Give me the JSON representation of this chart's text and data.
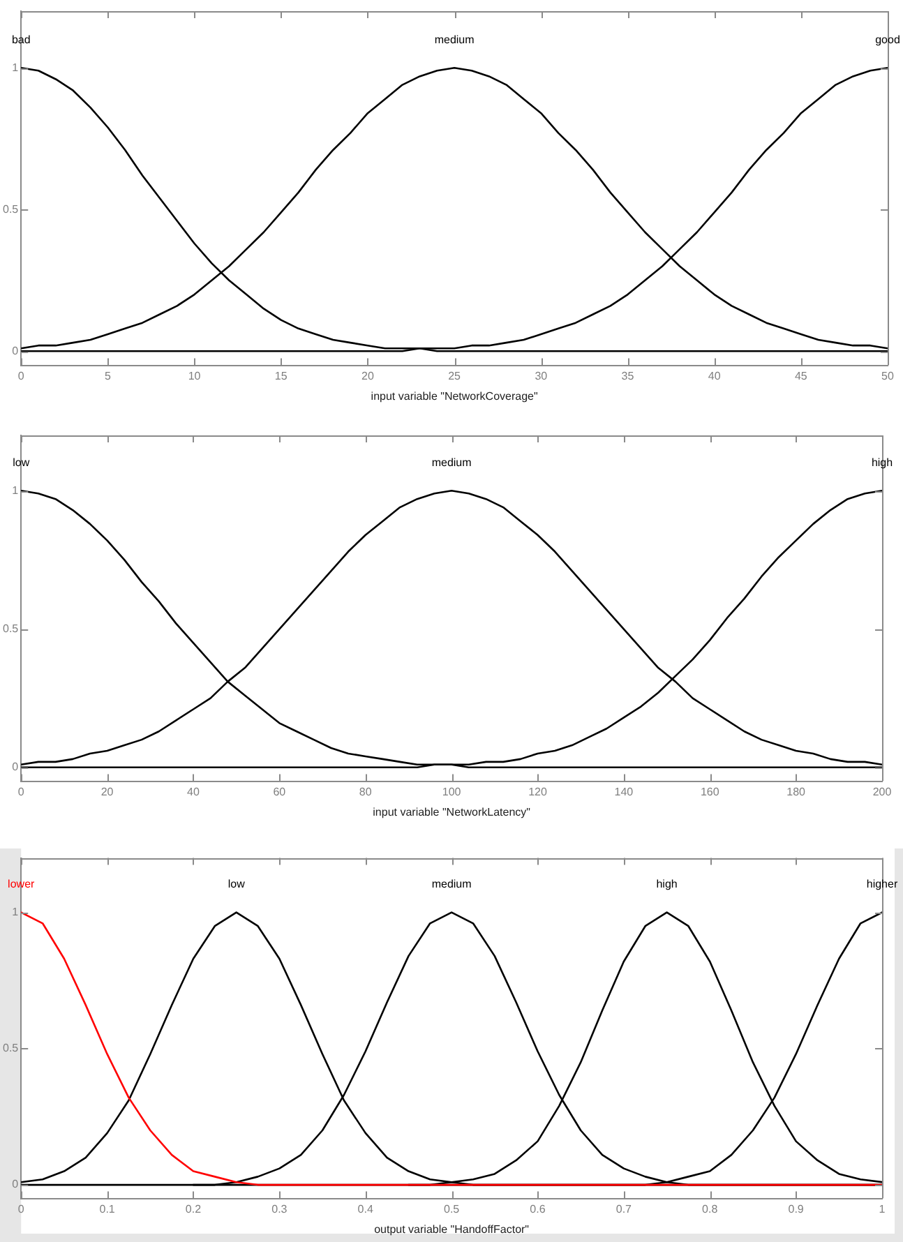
{
  "chart_data": [
    {
      "type": "line",
      "xlabel": "input variable \"NetworkCoverage\"",
      "xlim": [
        0,
        50
      ],
      "xticks": [
        0,
        5,
        10,
        15,
        20,
        25,
        30,
        35,
        40,
        45,
        50
      ],
      "ylim": [
        -0.05,
        1.2
      ],
      "yticks": [
        0,
        0.5,
        1
      ],
      "x": [
        0,
        1,
        2,
        3,
        4,
        5,
        6,
        7,
        8,
        9,
        10,
        11,
        12,
        13,
        14,
        15,
        16,
        17,
        18,
        19,
        20,
        21,
        22,
        23,
        24,
        25,
        26,
        27,
        28,
        29,
        30,
        31,
        32,
        33,
        34,
        35,
        36,
        37,
        38,
        39,
        40,
        41,
        42,
        43,
        44,
        45,
        46,
        47,
        48,
        49,
        50
      ],
      "series": [
        {
          "name": "bad",
          "color": "#000000",
          "values": [
            1,
            0.99,
            0.96,
            0.92,
            0.86,
            0.79,
            0.71,
            0.62,
            0.54,
            0.46,
            0.38,
            0.31,
            0.25,
            0.2,
            0.15,
            0.11,
            0.08,
            0.06,
            0.04,
            0.03,
            0.02,
            0.01,
            0.01,
            0.01,
            0,
            0,
            0,
            0,
            0,
            0,
            0,
            0,
            0,
            0,
            0,
            0,
            0,
            0,
            0,
            0,
            0,
            0,
            0,
            0,
            0,
            0,
            0,
            0,
            0,
            0,
            0
          ]
        },
        {
          "name": "medium",
          "color": "#000000",
          "values": [
            0.01,
            0.02,
            0.02,
            0.03,
            0.04,
            0.06,
            0.08,
            0.1,
            0.13,
            0.16,
            0.2,
            0.25,
            0.3,
            0.36,
            0.42,
            0.49,
            0.56,
            0.64,
            0.71,
            0.77,
            0.84,
            0.89,
            0.94,
            0.97,
            0.99,
            1,
            0.99,
            0.97,
            0.94,
            0.89,
            0.84,
            0.77,
            0.71,
            0.64,
            0.56,
            0.49,
            0.42,
            0.36,
            0.3,
            0.25,
            0.2,
            0.16,
            0.13,
            0.1,
            0.08,
            0.06,
            0.04,
            0.03,
            0.02,
            0.02,
            0.01
          ]
        },
        {
          "name": "good",
          "color": "#000000",
          "values": [
            0,
            0,
            0,
            0,
            0,
            0,
            0,
            0,
            0,
            0,
            0,
            0,
            0,
            0,
            0,
            0,
            0,
            0,
            0,
            0,
            0,
            0,
            0,
            0.01,
            0.01,
            0.01,
            0.02,
            0.02,
            0.03,
            0.04,
            0.06,
            0.08,
            0.1,
            0.13,
            0.16,
            0.2,
            0.25,
            0.3,
            0.36,
            0.42,
            0.49,
            0.56,
            0.64,
            0.71,
            0.77,
            0.84,
            0.89,
            0.94,
            0.97,
            0.99,
            1
          ]
        }
      ]
    },
    {
      "type": "line",
      "xlabel": "input variable \"NetworkLatency\"",
      "xlim": [
        0,
        200
      ],
      "xticks": [
        0,
        20,
        40,
        60,
        80,
        100,
        120,
        140,
        160,
        180,
        200
      ],
      "ylim": [
        -0.05,
        1.2
      ],
      "yticks": [
        0,
        0.5,
        1
      ],
      "x": [
        0,
        4,
        8,
        12,
        16,
        20,
        24,
        28,
        32,
        36,
        40,
        44,
        48,
        52,
        56,
        60,
        64,
        68,
        72,
        76,
        80,
        84,
        88,
        92,
        96,
        100,
        104,
        108,
        112,
        116,
        120,
        124,
        128,
        132,
        136,
        140,
        144,
        148,
        152,
        156,
        160,
        164,
        168,
        172,
        176,
        180,
        184,
        188,
        192,
        196,
        200
      ],
      "series": [
        {
          "name": "low",
          "color": "#000000",
          "values": [
            1,
            0.99,
            0.97,
            0.93,
            0.88,
            0.82,
            0.75,
            0.67,
            0.6,
            0.52,
            0.45,
            0.38,
            0.31,
            0.26,
            0.21,
            0.16,
            0.13,
            0.1,
            0.07,
            0.05,
            0.04,
            0.03,
            0.02,
            0.01,
            0.01,
            0.01,
            0,
            0,
            0,
            0,
            0,
            0,
            0,
            0,
            0,
            0,
            0,
            0,
            0,
            0,
            0,
            0,
            0,
            0,
            0,
            0,
            0,
            0,
            0,
            0,
            0
          ]
        },
        {
          "name": "medium",
          "color": "#000000",
          "values": [
            0.01,
            0.02,
            0.02,
            0.03,
            0.05,
            0.06,
            0.08,
            0.1,
            0.13,
            0.17,
            0.21,
            0.25,
            0.31,
            0.36,
            0.43,
            0.5,
            0.57,
            0.64,
            0.71,
            0.78,
            0.84,
            0.89,
            0.94,
            0.97,
            0.99,
            1,
            0.99,
            0.97,
            0.94,
            0.89,
            0.84,
            0.78,
            0.71,
            0.64,
            0.57,
            0.5,
            0.43,
            0.36,
            0.31,
            0.25,
            0.21,
            0.17,
            0.13,
            0.1,
            0.08,
            0.06,
            0.05,
            0.03,
            0.02,
            0.02,
            0.01
          ]
        },
        {
          "name": "high",
          "color": "#000000",
          "values": [
            0,
            0,
            0,
            0,
            0,
            0,
            0,
            0,
            0,
            0,
            0,
            0,
            0,
            0,
            0,
            0,
            0,
            0,
            0,
            0,
            0,
            0,
            0,
            0,
            0.01,
            0.01,
            0.01,
            0.02,
            0.02,
            0.03,
            0.05,
            0.06,
            0.08,
            0.11,
            0.14,
            0.18,
            0.22,
            0.27,
            0.33,
            0.39,
            0.46,
            0.54,
            0.61,
            0.69,
            0.76,
            0.82,
            0.88,
            0.93,
            0.97,
            0.99,
            1
          ]
        }
      ]
    },
    {
      "type": "line",
      "xlabel": "output variable \"HandoffFactor\"",
      "xlim": [
        0,
        1
      ],
      "xticks": [
        0,
        0.1,
        0.2,
        0.3,
        0.4,
        0.5,
        0.6,
        0.7,
        0.8,
        0.9,
        1
      ],
      "ylim": [
        -0.05,
        1.2
      ],
      "yticks": [
        0,
        0.5,
        1
      ],
      "x": [
        0,
        0.025,
        0.05,
        0.075,
        0.1,
        0.125,
        0.15,
        0.175,
        0.2,
        0.225,
        0.25,
        0.275,
        0.3,
        0.325,
        0.35,
        0.375,
        0.4,
        0.425,
        0.45,
        0.475,
        0.5,
        0.525,
        0.55,
        0.575,
        0.6,
        0.625,
        0.65,
        0.675,
        0.7,
        0.725,
        0.75,
        0.775,
        0.8,
        0.825,
        0.85,
        0.875,
        0.9,
        0.925,
        0.95,
        0.975,
        1
      ],
      "series": [
        {
          "name": "lower",
          "color": "#ff0000",
          "values": [
            1,
            0.96,
            0.83,
            0.66,
            0.48,
            0.32,
            0.2,
            0.11,
            0.05,
            0.03,
            0.01,
            0,
            0,
            0,
            0,
            0,
            0,
            0,
            0,
            0,
            0,
            0,
            0,
            0,
            0,
            0,
            0,
            0,
            0,
            0,
            0,
            0,
            0,
            0,
            0,
            0,
            0,
            0,
            0,
            0,
            0
          ]
        },
        {
          "name": "low",
          "color": "#000000",
          "values": [
            0.01,
            0.02,
            0.05,
            0.1,
            0.19,
            0.31,
            0.48,
            0.66,
            0.83,
            0.95,
            1,
            0.95,
            0.83,
            0.66,
            0.48,
            0.31,
            0.19,
            0.1,
            0.05,
            0.02,
            0.01,
            0,
            0,
            0,
            0,
            0,
            0,
            0,
            0,
            0,
            0,
            0,
            0,
            0,
            0,
            0,
            0,
            0,
            0,
            0,
            0
          ]
        },
        {
          "name": "medium",
          "color": "#000000",
          "x": [
            0.2,
            0.225,
            0.25,
            0.275,
            0.3,
            0.325,
            0.35,
            0.375,
            0.4,
            0.425,
            0.45,
            0.475,
            0.5,
            0.525,
            0.55,
            0.575,
            0.6,
            0.625,
            0.65,
            0.675,
            0.7,
            0.725,
            0.75,
            0.775,
            0.8,
            0.825,
            0.85,
            0.875,
            0.9,
            0.925,
            0.95,
            0.975,
            1
          ],
          "values": [
            0,
            0,
            0.01,
            0.03,
            0.06,
            0.11,
            0.2,
            0.33,
            0.49,
            0.67,
            0.84,
            0.96,
            1,
            0.96,
            0.84,
            0.67,
            0.49,
            0.33,
            0.2,
            0.11,
            0.06,
            0.03,
            0.01,
            0,
            0,
            0,
            0,
            0,
            0,
            0,
            0,
            0,
            0
          ]
        },
        {
          "name": "high",
          "color": "#000000",
          "x": [
            0.45,
            0.475,
            0.5,
            0.525,
            0.55,
            0.575,
            0.6,
            0.625,
            0.65,
            0.675,
            0.7,
            0.725,
            0.75,
            0.775,
            0.8,
            0.825,
            0.85,
            0.875,
            0.9,
            0.925,
            0.95,
            0.975,
            1
          ],
          "values": [
            0,
            0,
            0.01,
            0.02,
            0.04,
            0.09,
            0.16,
            0.29,
            0.45,
            0.64,
            0.82,
            0.95,
            1,
            0.95,
            0.82,
            0.64,
            0.45,
            0.29,
            0.16,
            0.09,
            0.04,
            0.02,
            0.01
          ]
        },
        {
          "name": "higher",
          "color": "#000000",
          "values": [
            0,
            0,
            0,
            0,
            0,
            0,
            0,
            0,
            0,
            0,
            0,
            0,
            0,
            0,
            0,
            0,
            0,
            0,
            0,
            0,
            0,
            0,
            0,
            0,
            0,
            0,
            0,
            0,
            0,
            0,
            0.01,
            0.03,
            0.05,
            0.11,
            0.2,
            0.32,
            0.48,
            0.66,
            0.83,
            0.96,
            1
          ]
        }
      ]
    }
  ]
}
